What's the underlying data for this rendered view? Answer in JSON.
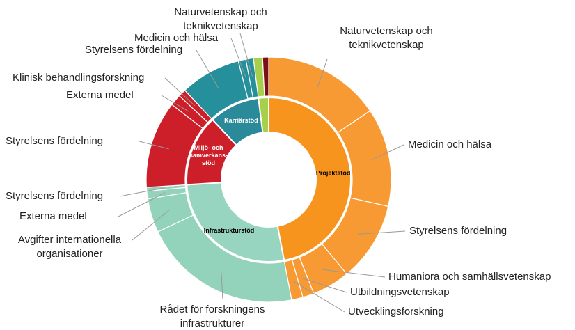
{
  "chart_data": {
    "type": "sunburst",
    "groups": [
      {
        "label": [
          "Projektstöd"
        ],
        "value": 47,
        "color": "#f7941d",
        "outer_color": "#f79a33",
        "label_color": "#000000",
        "children": [
          {
            "label": [
              "Naturvetenskap och",
              "teknikvetenskap"
            ],
            "value": 15.5
          },
          {
            "label": [
              "Medicin och hälsa"
            ],
            "value": 13
          },
          {
            "label": [
              "Styrelsens fördelning"
            ],
            "value": 10.5
          },
          {
            "label": [
              "Humaniora och samhällsvetenskap"
            ],
            "value": 5
          },
          {
            "label": [
              "Utbildningsvetenskap"
            ],
            "value": 1.5
          },
          {
            "label": [
              "Utvecklingsforskning"
            ],
            "value": 1.5
          }
        ]
      },
      {
        "label": [
          "Infrastrukturstöd"
        ],
        "value": 27,
        "color": "#98d5c0",
        "outer_color": "#93d3bc",
        "label_color": "#000000",
        "children": [
          {
            "label": [
              "Rådet för forskningens",
              "infrastrukturer"
            ],
            "value": 21
          },
          {
            "label": [
              "Avgifter internationella",
              "organisationer"
            ],
            "value": 4.5
          },
          {
            "label": [
              "Externa medel"
            ],
            "value": 1
          },
          {
            "label": [
              "Styrelsens fördelning"
            ],
            "value": 0.5
          }
        ]
      },
      {
        "label": [
          "Miljö- och",
          "samverkans-",
          "stöd"
        ],
        "value": 14,
        "color": "#cc1f2a",
        "outer_color": "#cc1f2a",
        "label_color": "#ffffff",
        "children": [
          {
            "label": [
              "Styrelsens fördelning"
            ],
            "value": 11.5
          },
          {
            "label": [
              "Externa medel"
            ],
            "value": 1.5
          },
          {
            "label": [
              "Klinisk behandlingsforskning"
            ],
            "value": 1
          }
        ]
      },
      {
        "label": [
          "Karriärstöd"
        ],
        "value": 10,
        "color": "#2a8a9a",
        "outer_color": "#25909c",
        "label_color": "#ffffff",
        "children": [
          {
            "label": [
              "Styrelsens fördelning"
            ],
            "value": 8
          },
          {
            "label": [
              "Medicin och hälsa"
            ],
            "value": 1
          },
          {
            "label": [
              "Naturvetenskap och",
              "teknikvetenskap"
            ],
            "value": 1
          }
        ]
      },
      {
        "label": null,
        "value": 2,
        "color": "#a6d04c",
        "outer_color": "#a6d04c",
        "label_color": "#000000",
        "children": [
          {
            "label": null,
            "value": 1.2,
            "color": "#a6d04c"
          },
          {
            "label": null,
            "value": 0.8,
            "color": "#7a0f1a"
          }
        ]
      }
    ]
  }
}
